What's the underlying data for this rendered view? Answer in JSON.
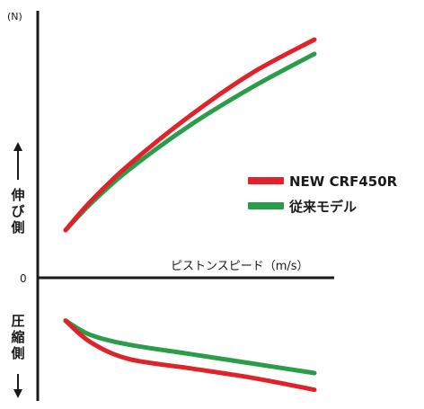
{
  "chart_data": {
    "type": "line",
    "title": "",
    "ylabel_unit": "(N)",
    "zero_label": "0",
    "xlabel": "ピストンスピード（m/s）",
    "extension_label": "伸び側",
    "compression_label": "圧縮側",
    "legend_position": "right",
    "series": [
      {
        "name": "NEW CRF450R",
        "color": "#e0232b",
        "extension": [
          [
            0.0,
            0.2
          ],
          [
            0.1,
            0.32
          ],
          [
            0.25,
            0.47
          ],
          [
            0.5,
            0.68
          ],
          [
            0.75,
            0.86
          ],
          [
            1.0,
            1.0
          ]
        ],
        "compression": [
          [
            0.0,
            -0.18
          ],
          [
            0.1,
            -0.27
          ],
          [
            0.25,
            -0.34
          ],
          [
            0.5,
            -0.38
          ],
          [
            0.75,
            -0.42
          ],
          [
            1.0,
            -0.47
          ]
        ]
      },
      {
        "name": "従来モデル",
        "color": "#2a9d4a",
        "extension": [
          [
            0.0,
            0.2
          ],
          [
            0.1,
            0.31
          ],
          [
            0.25,
            0.45
          ],
          [
            0.5,
            0.64
          ],
          [
            0.75,
            0.8
          ],
          [
            1.0,
            0.94
          ]
        ],
        "compression": [
          [
            0.0,
            -0.18
          ],
          [
            0.1,
            -0.24
          ],
          [
            0.25,
            -0.28
          ],
          [
            0.5,
            -0.32
          ],
          [
            0.75,
            -0.36
          ],
          [
            1.0,
            -0.4
          ]
        ]
      }
    ],
    "xlim": [
      0,
      1
    ],
    "ylim": [
      -0.5,
      1.05
    ],
    "grid": false
  }
}
